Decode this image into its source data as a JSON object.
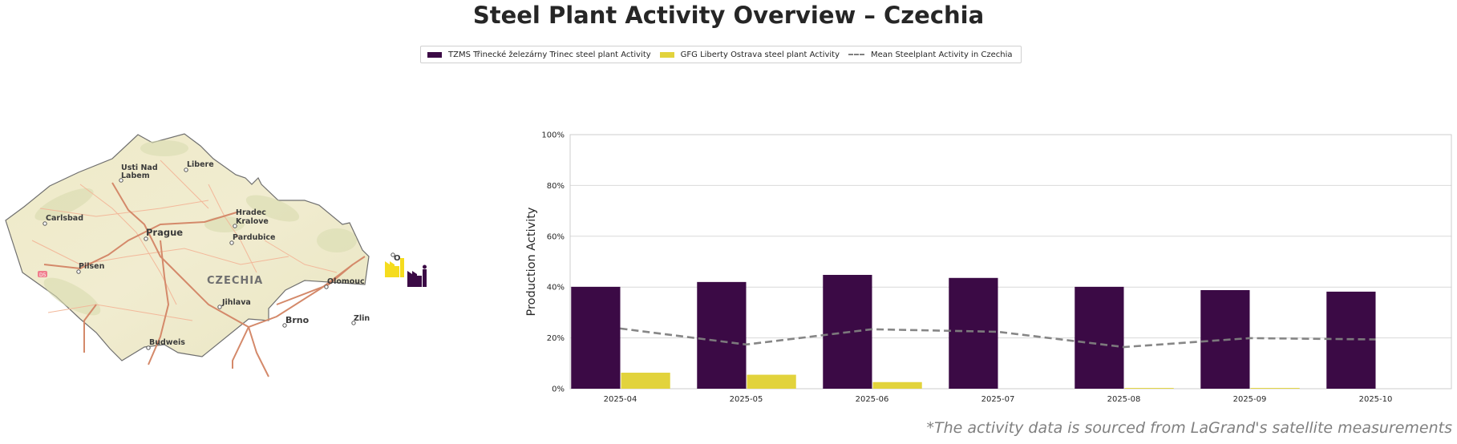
{
  "title": "Steel Plant Activity Overview – Czechia",
  "legend": [
    {
      "label": "TZMS Třinecké železárny Trinec steel plant Activity",
      "color": "#3b0a45",
      "kind": "bar"
    },
    {
      "label": "GFG Liberty Ostrava steel plant Activity",
      "color": "#e2d33c",
      "kind": "bar"
    },
    {
      "label": "Mean Steelplant Activity in Czechia",
      "color": "#7f7f7f",
      "kind": "dashed-line"
    }
  ],
  "map": {
    "country_label": "CZECHIA",
    "cities": [
      "Usti Nad Labem",
      "Liberec",
      "Carlsbad",
      "Prague",
      "Hradec Kralove",
      "Pardubice",
      "Pilsen",
      "Olomouc",
      "Jihlava",
      "Brno",
      "Zlin",
      "Budweis",
      "Ostrava"
    ],
    "city_labels": {
      "usti": [
        "Usti Nad",
        "Labem"
      ],
      "liberec": "Libere",
      "carlsbad": "Carlsbad",
      "prague": "Prague",
      "hradec": [
        "Hradec",
        "Kralove"
      ],
      "pardubice": "Pardubice",
      "pilsen": "Pilsen",
      "olomouc": "Olomouc",
      "jihlava": "Jihlava",
      "brno": "Brno",
      "zlin": "Zlin",
      "budweis": "Budweis",
      "ostrava": "O"
    },
    "road_badge": "D5",
    "plant_icons": [
      {
        "name": "GFG Liberty Ostrava",
        "color": "#f5dc1e"
      },
      {
        "name": "TZMS Trinec",
        "color": "#3b0a45"
      }
    ]
  },
  "chart_data": {
    "type": "bar",
    "title": "Steel Plant Activity Overview – Czechia",
    "xlabel": "",
    "ylabel": "Production Activity",
    "ylim": [
      0,
      100
    ],
    "yticks": [
      "0%",
      "20%",
      "40%",
      "60%",
      "80%",
      "100%"
    ],
    "ytick_values": [
      0,
      20,
      40,
      60,
      80,
      100
    ],
    "grid": true,
    "legend_position": "top-center",
    "categories": [
      "2025-04",
      "2025-05",
      "2025-06",
      "2025-07",
      "2025-08",
      "2025-09",
      "2025-10"
    ],
    "series": [
      {
        "name": "TZMS Třinecké železárny Trinec steel plant Activity",
        "type": "bar",
        "color": "#3b0a45",
        "values": [
          40.1,
          42.0,
          44.8,
          43.6,
          40.1,
          38.8,
          38.2
        ]
      },
      {
        "name": "GFG Liberty Ostrava steel plant Activity",
        "type": "bar",
        "color": "#e2d33c",
        "values": [
          6.3,
          5.5,
          2.6,
          0,
          0.3,
          0.3,
          0
        ]
      },
      {
        "name": "Mean Steelplant Activity in Czechia",
        "type": "line",
        "style": "dashed",
        "color": "#7f7f7f",
        "values": [
          23.7,
          17.4,
          23.4,
          22.4,
          16.4,
          19.9,
          19.4
        ]
      }
    ]
  },
  "footnote": "*The activity data is sourced from LaGrand's satellite measurements"
}
